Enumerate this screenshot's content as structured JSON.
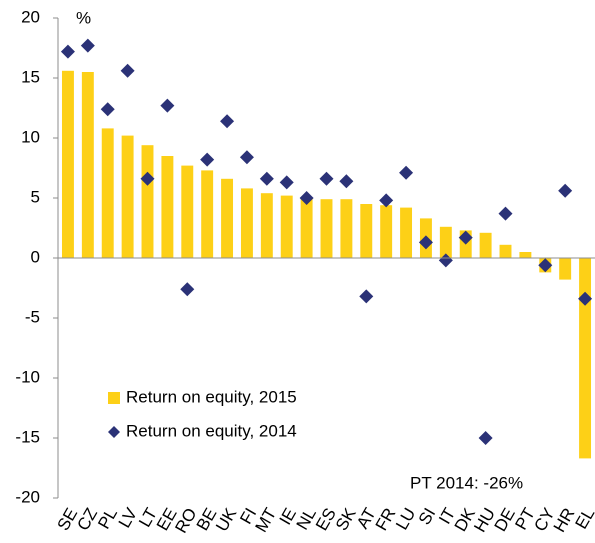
{
  "chart_data": {
    "type": "bar",
    "unit_label": "%",
    "annotation": "PT 2014: -26%",
    "categories": [
      "SE",
      "CZ",
      "PL",
      "LV",
      "LT",
      "EE",
      "RO",
      "BE",
      "UK",
      "FI",
      "MT",
      "IE",
      "NL",
      "ES",
      "SK",
      "AT",
      "FR",
      "LU",
      "SI",
      "IT",
      "DK",
      "HU",
      "DE",
      "PT",
      "CY",
      "HR",
      "EL"
    ],
    "series": [
      {
        "name": "Return on equity, 2015",
        "type": "bar",
        "color": "#fdd017",
        "values": [
          15.6,
          15.5,
          10.8,
          10.2,
          9.4,
          8.5,
          7.7,
          7.3,
          6.6,
          5.8,
          5.4,
          5.2,
          5.0,
          4.9,
          4.9,
          4.5,
          4.4,
          4.2,
          3.3,
          2.6,
          2.3,
          2.1,
          1.1,
          0.5,
          -1.2,
          -1.8,
          -16.7
        ]
      },
      {
        "name": "Return on equity, 2014",
        "type": "scatter",
        "marker": "diamond",
        "color": "#2b3277",
        "values": [
          17.2,
          17.7,
          12.4,
          15.6,
          6.6,
          12.7,
          -2.6,
          8.2,
          11.4,
          8.4,
          6.6,
          6.3,
          5.0,
          6.6,
          6.4,
          -3.2,
          4.8,
          7.1,
          1.3,
          -0.2,
          1.7,
          -15.0,
          3.7,
          null,
          -0.6,
          5.6,
          -3.4
        ]
      }
    ],
    "ylim": [
      -20,
      20
    ],
    "yticks": [
      -20,
      -15,
      -10,
      -5,
      0,
      5,
      10,
      15,
      20
    ],
    "grid": false,
    "legend": "lower-left"
  }
}
